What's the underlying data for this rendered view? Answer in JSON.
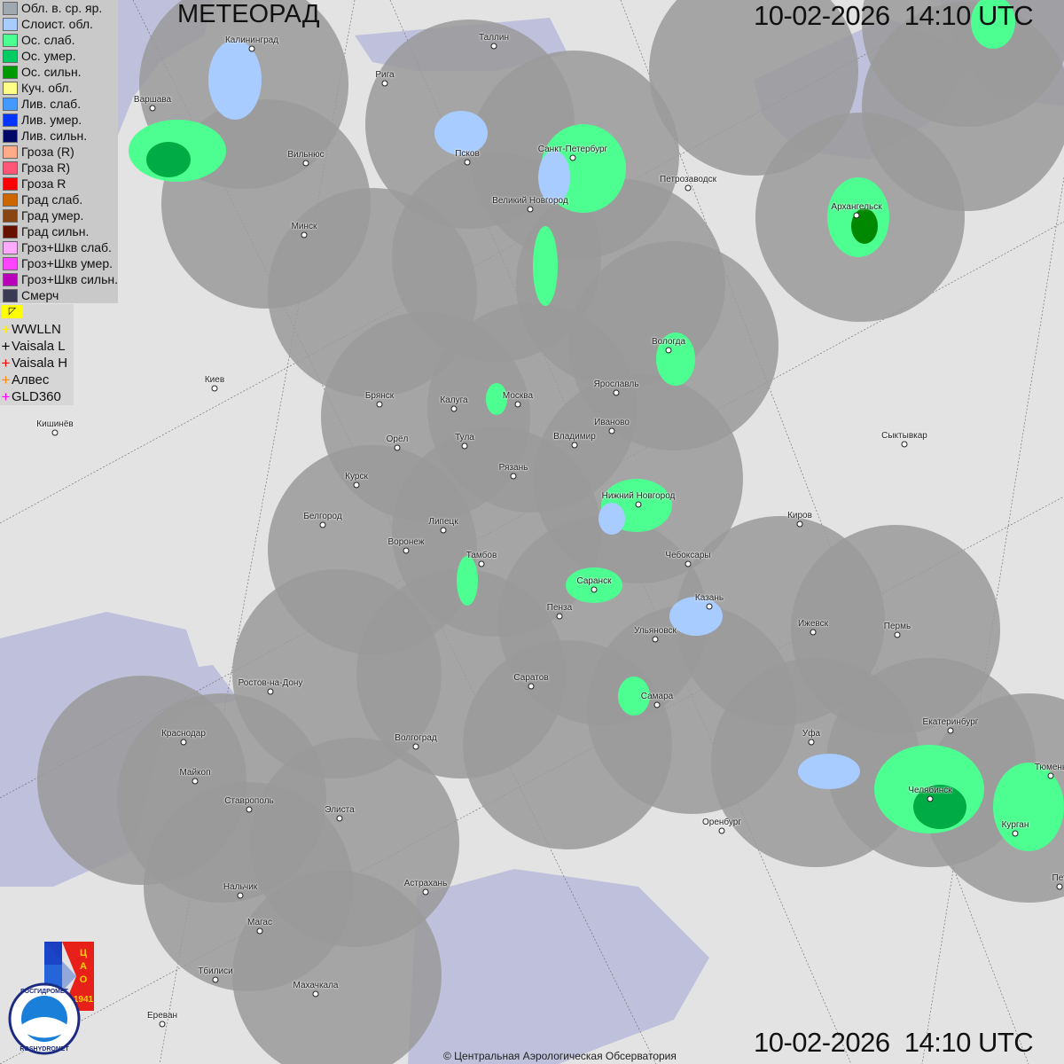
{
  "header": {
    "title": "МЕТЕОРАД",
    "datetime_top": "10-02-2026  14:10 UTC",
    "datetime_bottom": "10-02-2026  14:10 UTC"
  },
  "legend": [
    {
      "label": "Обл. в. ср. яр.",
      "color": "#a0a8b0"
    },
    {
      "label": "Слоист. обл.",
      "color": "#a8ccff"
    },
    {
      "label": "Ос. слаб.",
      "color": "#4cff90"
    },
    {
      "label": "Ос. умер.",
      "color": "#00cc66"
    },
    {
      "label": "Ос. сильн.",
      "color": "#009900"
    },
    {
      "label": "Куч. обл.",
      "color": "#ffff88"
    },
    {
      "label": "Лив. слаб.",
      "color": "#4499ff"
    },
    {
      "label": "Лив. умер.",
      "color": "#0033ff"
    },
    {
      "label": "Лив. сильн.",
      "color": "#000a66"
    },
    {
      "label": "Гроза (R)",
      "color": "#ffaa88"
    },
    {
      "label": "Гроза R)",
      "color": "#ff5577"
    },
    {
      "label": "Гроза R",
      "color": "#ff0000"
    },
    {
      "label": "Град слаб.",
      "color": "#cc6600"
    },
    {
      "label": "Град умер.",
      "color": "#884411"
    },
    {
      "label": "Град сильн.",
      "color": "#661100"
    },
    {
      "label": "Гроз+Шкв слаб.",
      "color": "#ffaaff"
    },
    {
      "label": "Гроз+Шкв умер.",
      "color": "#ff44ff"
    },
    {
      "label": "Гроз+Шкв сильн.",
      "color": "#bb00bb"
    },
    {
      "label": "Смерч",
      "color": "#3a3a55"
    }
  ],
  "lightning_legend": [
    {
      "label": "WWLLN",
      "color": "#ffee00"
    },
    {
      "label": "Vaisala L",
      "color": "#000000"
    },
    {
      "label": "Vaisala H",
      "color": "#ff0000"
    },
    {
      "label": "Алвес",
      "color": "#ff8800"
    },
    {
      "label": "GLD360",
      "color": "#ff00ff"
    }
  ],
  "cities": [
    "Калининград",
    "Таллин",
    "Рига",
    "Варшава",
    "Вильнюс",
    "Псков",
    "Санкт-Петербург",
    "Петрозаводск",
    "Великий Новгород",
    "Архангельск",
    "Минск",
    "Вологда",
    "Ярославль",
    "Киев",
    "Брянск",
    "Калуга",
    "Москва",
    "Иваново",
    "Кишинёв",
    "Орёл",
    "Тула",
    "Владимир",
    "Сыктывкар",
    "Рязань",
    "Курск",
    "Нижний Новгород",
    "Белгород",
    "Липецк",
    "Киров",
    "Воронеж",
    "Тамбов",
    "Чебоксары",
    "Саранск",
    "Казань",
    "Пенза",
    "Ижевск",
    "Пермь",
    "Ульяновск",
    "Ростов-на-Дону",
    "Саратов",
    "Самара",
    "Краснодар",
    "Уфа",
    "Екатеринбург",
    "Волгоград",
    "Майкоп",
    "Челябинск",
    "Тюмень",
    "Ставрополь",
    "Элиста",
    "Оренбург",
    "Курган",
    "Нальчик",
    "Астрахань",
    "Магас",
    "Тбилиси",
    "Махачкала",
    "Ереван",
    "Пет"
  ],
  "logos": {
    "cao": "ЦАО 1941",
    "roshydromet": "РОСГИДРОМЕТ ROSHYDROMET"
  },
  "footer": {
    "copyright": "© Центральная Аэрологическая Обсерватория"
  }
}
